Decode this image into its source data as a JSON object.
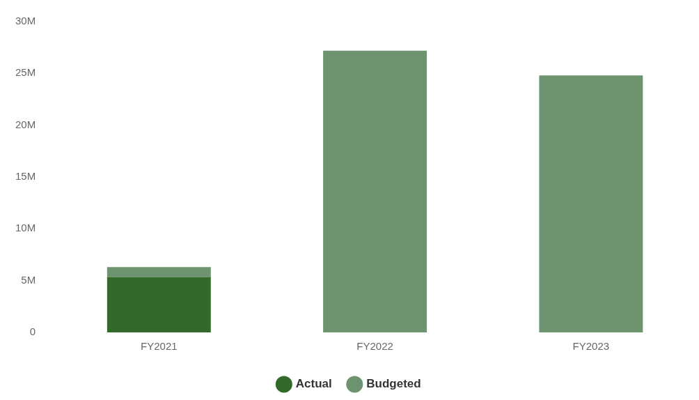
{
  "chart_data": {
    "type": "bar",
    "stacked": true,
    "categories": [
      "FY2021",
      "FY2022",
      "FY2023"
    ],
    "series": [
      {
        "name": "Actual",
        "color": "#33692b",
        "values": [
          5.35,
          null,
          null
        ]
      },
      {
        "name": "Budgeted",
        "color": "#6e946f",
        "values": [
          0.95,
          27.2,
          24.8
        ]
      }
    ],
    "ylim": [
      0,
      30
    ],
    "yticks": [
      0,
      {
        "value": 5,
        "label": "5M"
      },
      {
        "value": 10,
        "label": "10M"
      },
      {
        "value": 15,
        "label": "15M"
      },
      {
        "value": 20,
        "label": "20M"
      },
      {
        "value": 25,
        "label": "25M"
      },
      {
        "value": 30,
        "label": "30M"
      }
    ],
    "grid": false,
    "legend": "bottom"
  }
}
